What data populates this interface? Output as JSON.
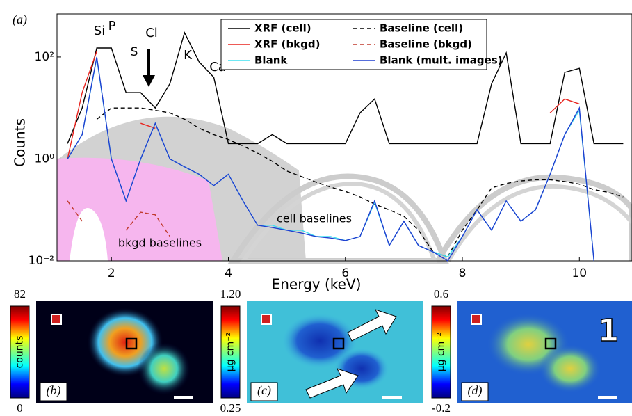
{
  "chart_data": {
    "type": "line",
    "panel_label": "(a)",
    "xlabel": "Energy (keV)",
    "ylabel": "Counts",
    "log_y": true,
    "xlim": [
      1.07,
      10.9
    ],
    "ylim": [
      0.01,
      700
    ],
    "xticks": [
      2,
      4,
      6,
      8,
      10
    ],
    "yticks": [
      {
        "value": 0.01,
        "label": "10⁻²"
      },
      {
        "value": 1,
        "label": "10⁰"
      },
      {
        "value": 100,
        "label": "10²"
      }
    ],
    "x": [
      1.25,
      1.5,
      1.75,
      2,
      2.25,
      2.5,
      2.75,
      3,
      3.25,
      3.5,
      3.75,
      4,
      4.25,
      4.5,
      4.75,
      5,
      5.25,
      5.5,
      5.75,
      6,
      6.25,
      6.5,
      6.75,
      7,
      7.25,
      7.5,
      7.75,
      8,
      8.25,
      8.5,
      8.75,
      9,
      9.25,
      9.5,
      9.75,
      10,
      10.25,
      10.5,
      10.75
    ],
    "series": [
      {
        "name": "XRF (cell)",
        "color": "#000000",
        "dashed": false,
        "values": [
          2,
          10,
          150,
          150,
          20,
          20,
          10,
          30,
          300,
          80,
          40,
          2,
          2,
          2,
          3,
          2,
          2,
          2,
          2,
          2,
          8,
          15,
          2,
          2,
          2,
          2,
          2,
          2,
          2,
          30,
          120,
          2,
          2,
          2,
          50,
          60,
          2,
          2,
          2
        ]
      },
      {
        "name": "Baseline (cell)",
        "color": "#000000",
        "dashed": true,
        "values": [
          null,
          null,
          6,
          10,
          10,
          10,
          9,
          8,
          6,
          4,
          3,
          2.4,
          1.8,
          1.3,
          0.9,
          0.58,
          0.45,
          0.35,
          0.28,
          0.23,
          0.18,
          0.13,
          0.1,
          0.075,
          0.04,
          0.015,
          0.012,
          0.04,
          0.1,
          0.27,
          0.33,
          0.37,
          0.39,
          0.39,
          0.36,
          0.32,
          0.25,
          0.22,
          0.18
        ]
      },
      {
        "name": "XRF (bkgd)",
        "color": "#e8231e",
        "dashed": false,
        "values": [
          1,
          20,
          130,
          null,
          null,
          5,
          4,
          null,
          null,
          null,
          null,
          null,
          null,
          null,
          null,
          null,
          null,
          null,
          null,
          null,
          null,
          null,
          null,
          null,
          null,
          null,
          null,
          null,
          null,
          null,
          null,
          null,
          null,
          8,
          15,
          12,
          null,
          null,
          null
        ]
      },
      {
        "name": "Baseline (bkgd)",
        "color": "#c0392b",
        "dashed": true,
        "values": [
          0.15,
          0.06,
          null,
          null,
          0.04,
          0.09,
          0.08,
          0.03,
          null,
          null,
          null,
          null,
          null,
          null,
          null,
          null,
          null,
          null,
          null,
          null,
          null,
          null,
          null,
          null,
          null,
          null,
          null,
          null,
          null,
          null,
          null,
          null,
          null,
          null,
          null,
          null,
          null,
          null,
          null
        ]
      },
      {
        "name": "Blank",
        "color": "#3fe0f0",
        "dashed": false,
        "values": [
          1,
          3,
          95,
          1,
          0.15,
          1,
          5,
          1,
          0.7,
          0.5,
          0.3,
          0.5,
          0.15,
          0.05,
          0.05,
          0.04,
          0.04,
          0.03,
          0.03,
          0.025,
          0.03,
          0.14,
          0.02,
          0.06,
          0.02,
          0.015,
          0.012,
          0.03,
          0.1,
          0.04,
          0.15,
          0.06,
          0.1,
          0.5,
          3,
          9,
          0.01,
          null,
          null
        ]
      },
      {
        "name": "Blank (mult. images)",
        "color": "#1f3fd0",
        "dashed": false,
        "values": [
          1,
          3,
          100,
          1,
          0.15,
          1,
          5,
          1,
          0.7,
          0.5,
          0.3,
          0.5,
          0.15,
          0.05,
          0.045,
          0.04,
          0.035,
          0.03,
          0.028,
          0.025,
          0.03,
          0.15,
          0.02,
          0.06,
          0.02,
          0.015,
          0.01,
          0.03,
          0.1,
          0.04,
          0.15,
          0.06,
          0.1,
          0.5,
          3,
          10,
          0.01,
          null,
          null
        ]
      }
    ],
    "annotations": [
      "Si",
      "P",
      "S",
      "Cl",
      "K",
      "Ca",
      "cell baselines",
      "bkgd baselines"
    ]
  },
  "image_panels": [
    {
      "label": "(b)",
      "colorbar_label": "counts",
      "colorbar_ticks": [
        0,
        82
      ]
    },
    {
      "label": "(c)",
      "colorbar_label": "µg cm⁻²",
      "colorbar_ticks": [
        0.25,
        {
          "value": 1.2,
          "label": "1.20"
        }
      ]
    },
    {
      "label": "(d)",
      "colorbar_label": "µg cm⁻²",
      "colorbar_ticks": [
        -0.2,
        0.6
      ],
      "annotation": "1"
    }
  ]
}
